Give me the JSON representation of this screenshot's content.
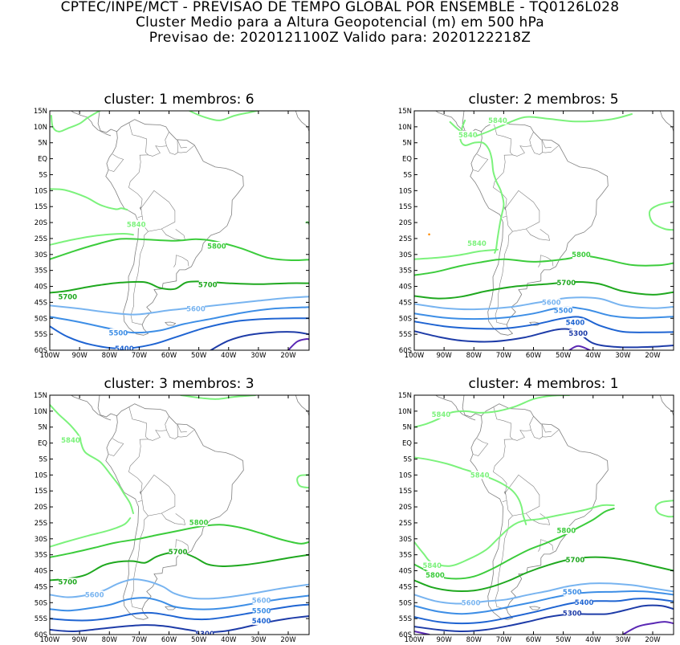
{
  "header": {
    "line1": "CPTEC/INPE/MCT - PREVISAO DE TEMPO GLOBAL POR ENSEMBLE - TQ0126L028",
    "line2": "Cluster Medio para a Altura Geopotencial (m) em 500 hPa",
    "line3": "Previsao de: 2020121100Z    Valido para: 2020122218Z"
  },
  "lat_ticks": [
    "15N",
    "10N",
    "5N",
    "EQ",
    "5S",
    "10S",
    "15S",
    "20S",
    "25S",
    "30S",
    "35S",
    "40S",
    "45S",
    "50S",
    "55S",
    "60S"
  ],
  "lon_ticks": [
    "100W",
    "90W",
    "80W",
    "70W",
    "60W",
    "50W",
    "40W",
    "30W",
    "20W"
  ],
  "colors": {
    "c5840": "#7cf27c",
    "c5800": "#3ccc3c",
    "c5700": "#1fa81f",
    "c5600": "#78b4f0",
    "c5500": "#3d8ee6",
    "c5400": "#1f64d2",
    "c5300": "#1e3ca8",
    "c5200": "#5a28b4",
    "coast": "#808080"
  },
  "panels": [
    {
      "title": "cluster: 1   membros: 6",
      "labels": [
        "5840",
        "5800",
        "5700",
        "5700",
        "5600",
        "5500",
        "5400"
      ]
    },
    {
      "title": "cluster: 2   membros: 5",
      "labels": [
        "5840",
        "5840",
        "5840",
        "5800",
        "5700",
        "5600",
        "5500",
        "5400",
        "5300"
      ]
    },
    {
      "title": "cluster: 3   membros: 3",
      "labels": [
        "5840",
        "5800",
        "5700",
        "5700",
        "5600",
        "5600",
        "5500",
        "5400",
        "5300"
      ]
    },
    {
      "title": "cluster: 4   membros: 1",
      "labels": [
        "5840",
        "5840",
        "5800",
        "5840",
        "5800",
        "5700",
        "5600",
        "5500",
        "5400",
        "5300"
      ]
    }
  ]
}
